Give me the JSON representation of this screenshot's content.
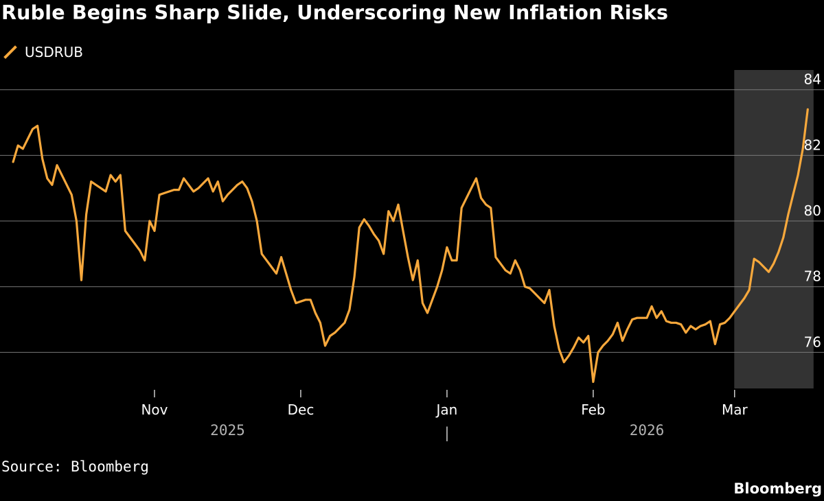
{
  "colors": {
    "line": "#f7a83c",
    "grid": "#7a7a7a",
    "highlight": "#333333",
    "background": "#000000",
    "text": "#ffffff",
    "year_text": "#b3b3b3"
  },
  "chart_data": {
    "type": "line",
    "title": "Ruble Begins Sharp Slide, Underscoring New Inflation Risks",
    "legend": [
      "USDRUB"
    ],
    "xlabel": "",
    "ylabel": "",
    "ylim": [
      74.9,
      84.6
    ],
    "yticks": [
      76,
      78,
      80,
      82,
      84
    ],
    "x_range": [
      0,
      161
    ],
    "x_ticks": [
      {
        "label": "Nov",
        "x": 30
      },
      {
        "label": "Dec",
        "x": 60
      },
      {
        "label": "Jan",
        "x": 90
      },
      {
        "label": "Feb",
        "x": 120
      },
      {
        "label": "Mar",
        "x": 149
      }
    ],
    "year_labels": [
      {
        "label": "2025",
        "x": 45
      },
      {
        "label": "2026",
        "x": 131
      }
    ],
    "year_separator": {
      "label": "|",
      "x": 90
    },
    "highlight_range": [
      149,
      164
    ],
    "series": [
      {
        "name": "USDRUB",
        "values": [
          [
            1,
            81.8
          ],
          [
            2,
            82.3
          ],
          [
            3,
            82.2
          ],
          [
            4,
            82.5
          ],
          [
            5,
            82.8
          ],
          [
            6,
            82.9
          ],
          [
            7,
            81.9
          ],
          [
            8,
            81.3
          ],
          [
            9,
            81.1
          ],
          [
            10,
            81.7
          ],
          [
            11,
            81.4
          ],
          [
            12,
            81.1
          ],
          [
            13,
            80.8
          ],
          [
            14,
            80.0
          ],
          [
            15,
            78.2
          ],
          [
            16,
            80.2
          ],
          [
            17,
            81.2
          ],
          [
            18,
            81.1
          ],
          [
            19,
            81.0
          ],
          [
            20,
            80.9
          ],
          [
            21,
            81.4
          ],
          [
            22,
            81.2
          ],
          [
            23,
            81.4
          ],
          [
            24,
            79.7
          ],
          [
            25,
            79.5
          ],
          [
            26,
            79.3
          ],
          [
            27,
            79.1
          ],
          [
            28,
            78.8
          ],
          [
            29,
            80.0
          ],
          [
            30,
            79.7
          ],
          [
            31,
            80.8
          ],
          [
            32,
            80.85
          ],
          [
            33,
            80.9
          ],
          [
            34,
            80.95
          ],
          [
            35,
            80.95
          ],
          [
            36,
            81.3
          ],
          [
            37,
            81.1
          ],
          [
            38,
            80.9
          ],
          [
            39,
            81.0
          ],
          [
            40,
            81.15
          ],
          [
            41,
            81.3
          ],
          [
            42,
            80.9
          ],
          [
            43,
            81.2
          ],
          [
            44,
            80.6
          ],
          [
            45,
            80.8
          ],
          [
            46,
            80.95
          ],
          [
            47,
            81.1
          ],
          [
            48,
            81.2
          ],
          [
            49,
            81.0
          ],
          [
            50,
            80.6
          ],
          [
            51,
            80.0
          ],
          [
            52,
            79.0
          ],
          [
            53,
            78.8
          ],
          [
            54,
            78.6
          ],
          [
            55,
            78.4
          ],
          [
            56,
            78.9
          ],
          [
            57,
            78.4
          ],
          [
            58,
            77.9
          ],
          [
            59,
            77.5
          ],
          [
            60,
            77.55
          ],
          [
            61,
            77.6
          ],
          [
            62,
            77.6
          ],
          [
            63,
            77.2
          ],
          [
            64,
            76.9
          ],
          [
            65,
            76.2
          ],
          [
            66,
            76.5
          ],
          [
            67,
            76.6
          ],
          [
            68,
            76.75
          ],
          [
            69,
            76.9
          ],
          [
            70,
            77.3
          ],
          [
            71,
            78.3
          ],
          [
            72,
            79.8
          ],
          [
            73,
            80.05
          ],
          [
            74,
            79.85
          ],
          [
            75,
            79.6
          ],
          [
            76,
            79.4
          ],
          [
            77,
            79.0
          ],
          [
            78,
            80.3
          ],
          [
            79,
            80.0
          ],
          [
            80,
            80.5
          ],
          [
            81,
            79.7
          ],
          [
            82,
            78.9
          ],
          [
            83,
            78.2
          ],
          [
            84,
            78.8
          ],
          [
            85,
            77.5
          ],
          [
            86,
            77.2
          ],
          [
            87,
            77.6
          ],
          [
            88,
            78.0
          ],
          [
            89,
            78.5
          ],
          [
            90,
            79.2
          ],
          [
            91,
            78.8
          ],
          [
            92,
            78.8
          ],
          [
            93,
            80.4
          ],
          [
            94,
            80.7
          ],
          [
            95,
            81.0
          ],
          [
            96,
            81.3
          ],
          [
            97,
            80.7
          ],
          [
            98,
            80.5
          ],
          [
            99,
            80.4
          ],
          [
            100,
            78.9
          ],
          [
            101,
            78.7
          ],
          [
            102,
            78.5
          ],
          [
            103,
            78.4
          ],
          [
            104,
            78.8
          ],
          [
            105,
            78.5
          ],
          [
            106,
            78.0
          ],
          [
            107,
            77.95
          ],
          [
            108,
            77.8
          ],
          [
            109,
            77.65
          ],
          [
            110,
            77.5
          ],
          [
            111,
            77.9
          ],
          [
            112,
            76.8
          ],
          [
            113,
            76.1
          ],
          [
            114,
            75.7
          ],
          [
            115,
            75.9
          ],
          [
            116,
            76.15
          ],
          [
            117,
            76.45
          ],
          [
            118,
            76.3
          ],
          [
            119,
            76.5
          ],
          [
            120,
            75.1
          ],
          [
            121,
            76.0
          ],
          [
            122,
            76.2
          ],
          [
            123,
            76.35
          ],
          [
            124,
            76.55
          ],
          [
            125,
            76.9
          ],
          [
            126,
            76.35
          ],
          [
            127,
            76.7
          ],
          [
            128,
            77.0
          ],
          [
            129,
            77.05
          ],
          [
            130,
            77.05
          ],
          [
            131,
            77.05
          ],
          [
            132,
            77.4
          ],
          [
            133,
            77.05
          ],
          [
            134,
            77.25
          ],
          [
            135,
            76.95
          ],
          [
            136,
            76.9
          ],
          [
            137,
            76.9
          ],
          [
            138,
            76.85
          ],
          [
            139,
            76.6
          ],
          [
            140,
            76.8
          ],
          [
            141,
            76.7
          ],
          [
            142,
            76.8
          ],
          [
            143,
            76.85
          ],
          [
            144,
            76.95
          ],
          [
            145,
            76.25
          ],
          [
            146,
            76.85
          ],
          [
            147,
            76.9
          ],
          [
            148,
            77.05
          ],
          [
            149,
            77.25
          ],
          [
            150,
            77.45
          ],
          [
            151,
            77.65
          ],
          [
            152,
            77.9
          ],
          [
            153,
            78.85
          ],
          [
            154,
            78.75
          ],
          [
            155,
            78.6
          ],
          [
            156,
            78.45
          ],
          [
            157,
            78.7
          ],
          [
            158,
            79.05
          ],
          [
            159,
            79.5
          ],
          [
            160,
            80.2
          ],
          [
            161,
            80.8
          ],
          [
            162,
            81.4
          ],
          [
            163,
            82.2
          ],
          [
            164,
            83.4
          ]
        ]
      }
    ]
  },
  "footer": {
    "source": "Source: Bloomberg",
    "brand": "Bloomberg"
  }
}
